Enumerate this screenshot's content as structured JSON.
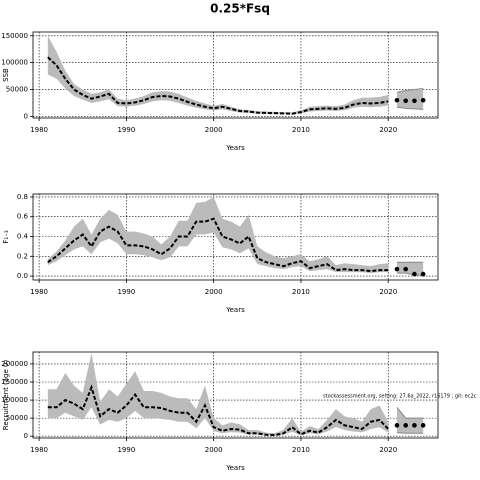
{
  "title": "0.25*Fsq",
  "chart_data": [
    {
      "type": "line",
      "ylabel": "SSB",
      "xlabel": "Years",
      "grid": true,
      "color": "#000000",
      "band_color": "#bbbbbb",
      "xlim": [
        1979.3,
        2025.7
      ],
      "xticks": [
        1980,
        1990,
        2000,
        2010,
        2020
      ],
      "ylim": [
        -3000,
        157000
      ],
      "yticks": [
        0,
        50000,
        100000,
        150000
      ],
      "x": [
        1981,
        1982,
        1983,
        1984,
        1985,
        1986,
        1987,
        1988,
        1989,
        1990,
        1991,
        1992,
        1993,
        1994,
        1995,
        1996,
        1997,
        1998,
        1999,
        2000,
        2001,
        2002,
        2003,
        2004,
        2005,
        2006,
        2007,
        2008,
        2009,
        2010,
        2011,
        2012,
        2013,
        2014,
        2015,
        2016,
        2017,
        2018,
        2019,
        2020
      ],
      "values": [
        110000,
        95000,
        70000,
        50000,
        40000,
        33000,
        37000,
        42000,
        25000,
        24000,
        26000,
        30000,
        36000,
        38000,
        37000,
        33000,
        27000,
        22000,
        18000,
        15000,
        18000,
        14000,
        10000,
        9000,
        7000,
        6500,
        6000,
        5500,
        5000,
        8000,
        13000,
        14000,
        15000,
        14000,
        16000,
        22000,
        25000,
        24000,
        25000,
        28000
      ],
      "upper": [
        150000,
        120000,
        85000,
        60000,
        50000,
        42000,
        45000,
        50000,
        33000,
        30000,
        33000,
        38000,
        45000,
        47000,
        46000,
        42000,
        35000,
        29000,
        24000,
        20000,
        23000,
        18000,
        13000,
        12000,
        9500,
        9000,
        8500,
        8000,
        7500,
        11000,
        18000,
        19000,
        20000,
        19000,
        22000,
        30000,
        35000,
        35000,
        36000,
        40000
      ],
      "lower": [
        78000,
        70000,
        52000,
        38000,
        31000,
        25000,
        28000,
        32000,
        19000,
        18000,
        20000,
        23000,
        28000,
        30000,
        29000,
        25000,
        20000,
        16000,
        13000,
        11000,
        13000,
        10000,
        7000,
        6500,
        5000,
        4500,
        4200,
        4000,
        3500,
        5500,
        9000,
        10000,
        11000,
        10000,
        11500,
        16000,
        18000,
        17000,
        18000,
        20000
      ],
      "proj_x": [
        2021,
        2022,
        2023,
        2024
      ],
      "proj_values": [
        30000,
        29000,
        29000,
        30000
      ],
      "proj_upper": [
        45000,
        48000,
        50000,
        52000
      ],
      "proj_lower": [
        17000,
        15000,
        14000,
        13000
      ]
    },
    {
      "type": "line",
      "ylabel": "F₁₋₃",
      "xlabel": "Years",
      "grid": true,
      "color": "#000000",
      "band_color": "#bbbbbb",
      "xlim": [
        1979.3,
        2025.7
      ],
      "xticks": [
        1980,
        1990,
        2000,
        2010,
        2020
      ],
      "ylim": [
        -0.04,
        0.83
      ],
      "yticks": [
        {
          "value": 0,
          "label": "0.0"
        },
        0.2,
        0.4,
        0.6,
        0.8
      ],
      "x": [
        1981,
        1982,
        1983,
        1984,
        1985,
        1986,
        1987,
        1988,
        1989,
        1990,
        1991,
        1992,
        1993,
        1994,
        1995,
        1996,
        1997,
        1998,
        1999,
        2000,
        2001,
        2002,
        2003,
        2004,
        2005,
        2006,
        2007,
        2008,
        2009,
        2010,
        2011,
        2012,
        2013,
        2014,
        2015,
        2016,
        2017,
        2018,
        2019,
        2020
      ],
      "values": [
        0.14,
        0.2,
        0.28,
        0.36,
        0.42,
        0.3,
        0.45,
        0.5,
        0.45,
        0.31,
        0.31,
        0.3,
        0.27,
        0.22,
        0.28,
        0.4,
        0.4,
        0.55,
        0.55,
        0.58,
        0.4,
        0.37,
        0.33,
        0.4,
        0.18,
        0.14,
        0.12,
        0.1,
        0.13,
        0.15,
        0.08,
        0.1,
        0.12,
        0.06,
        0.07,
        0.06,
        0.06,
        0.05,
        0.06,
        0.06
      ],
      "upper": [
        0.17,
        0.25,
        0.36,
        0.5,
        0.58,
        0.42,
        0.58,
        0.67,
        0.62,
        0.45,
        0.45,
        0.43,
        0.4,
        0.32,
        0.4,
        0.56,
        0.56,
        0.74,
        0.75,
        0.8,
        0.58,
        0.55,
        0.5,
        0.62,
        0.3,
        0.24,
        0.2,
        0.18,
        0.2,
        0.22,
        0.15,
        0.17,
        0.2,
        0.11,
        0.13,
        0.12,
        0.11,
        0.1,
        0.12,
        0.13
      ],
      "lower": [
        0.11,
        0.15,
        0.21,
        0.27,
        0.3,
        0.22,
        0.34,
        0.38,
        0.33,
        0.22,
        0.22,
        0.21,
        0.19,
        0.16,
        0.19,
        0.3,
        0.3,
        0.42,
        0.42,
        0.44,
        0.29,
        0.27,
        0.23,
        0.28,
        0.12,
        0.1,
        0.08,
        0.07,
        0.09,
        0.1,
        0.05,
        0.06,
        0.07,
        0.04,
        0.04,
        0.04,
        0.04,
        0.03,
        0.04,
        0.04
      ],
      "proj_x": [
        2021,
        2022,
        2023,
        2024
      ],
      "proj_values": [
        0.07,
        0.07,
        0.02,
        0.02
      ],
      "proj_upper": [
        0.14,
        0.14,
        0.14,
        0.14
      ],
      "proj_lower": [
        0.03,
        0.03,
        0.01,
        0.01
      ]
    },
    {
      "type": "line",
      "ylabel": "Recruitment (age 0)",
      "xlabel": "Years",
      "grid": true,
      "color": "#000000",
      "band_color": "#bbbbbb",
      "annotation": "stockassessment.org, setting: 27.6a_2022, r16179 ; git: ec2c",
      "xlim": [
        1979.3,
        2025.7
      ],
      "xticks": [
        1980,
        1990,
        2000,
        2010,
        2020
      ],
      "ylim": [
        -5000,
        233000
      ],
      "yticks": [
        0,
        50000,
        100000,
        150000,
        200000
      ],
      "x": [
        1981,
        1982,
        1983,
        1984,
        1985,
        1986,
        1987,
        1988,
        1989,
        1990,
        1991,
        1992,
        1993,
        1994,
        1995,
        1996,
        1997,
        1998,
        1999,
        2000,
        2001,
        2002,
        2003,
        2004,
        2005,
        2006,
        2007,
        2008,
        2009,
        2010,
        2011,
        2012,
        2013,
        2014,
        2015,
        2016,
        2017,
        2018,
        2019,
        2020
      ],
      "values": [
        80000,
        80000,
        100000,
        90000,
        75000,
        135000,
        55000,
        75000,
        65000,
        85000,
        115000,
        80000,
        80000,
        78000,
        70000,
        65000,
        65000,
        40000,
        85000,
        25000,
        15000,
        20000,
        18000,
        8000,
        8000,
        4000,
        3000,
        8000,
        25000,
        5000,
        15000,
        10000,
        25000,
        45000,
        30000,
        25000,
        20000,
        40000,
        45000,
        20000
      ],
      "upper": [
        130000,
        130000,
        175000,
        140000,
        120000,
        230000,
        95000,
        130000,
        110000,
        145000,
        180000,
        125000,
        125000,
        120000,
        110000,
        105000,
        105000,
        75000,
        140000,
        50000,
        30000,
        38000,
        33000,
        17000,
        17000,
        10000,
        8000,
        18000,
        50000,
        12000,
        28000,
        20000,
        45000,
        75000,
        55000,
        50000,
        40000,
        75000,
        85000,
        40000
      ],
      "lower": [
        50000,
        50000,
        65000,
        55000,
        45000,
        80000,
        32000,
        45000,
        40000,
        50000,
        70000,
        50000,
        50000,
        48000,
        45000,
        40000,
        40000,
        22000,
        50000,
        14000,
        8000,
        11000,
        10000,
        4000,
        4000,
        2000,
        1500,
        4000,
        12000,
        2500,
        8000,
        5000,
        13000,
        25000,
        17000,
        13000,
        11000,
        20000,
        25000,
        10000
      ],
      "proj_x": [
        2021,
        2022,
        2023,
        2024
      ],
      "proj_values": [
        30000,
        30000,
        30000,
        30000
      ],
      "proj_upper": [
        80000,
        50000,
        50000,
        50000
      ],
      "proj_lower": [
        10000,
        8000,
        8000,
        8000
      ]
    }
  ]
}
